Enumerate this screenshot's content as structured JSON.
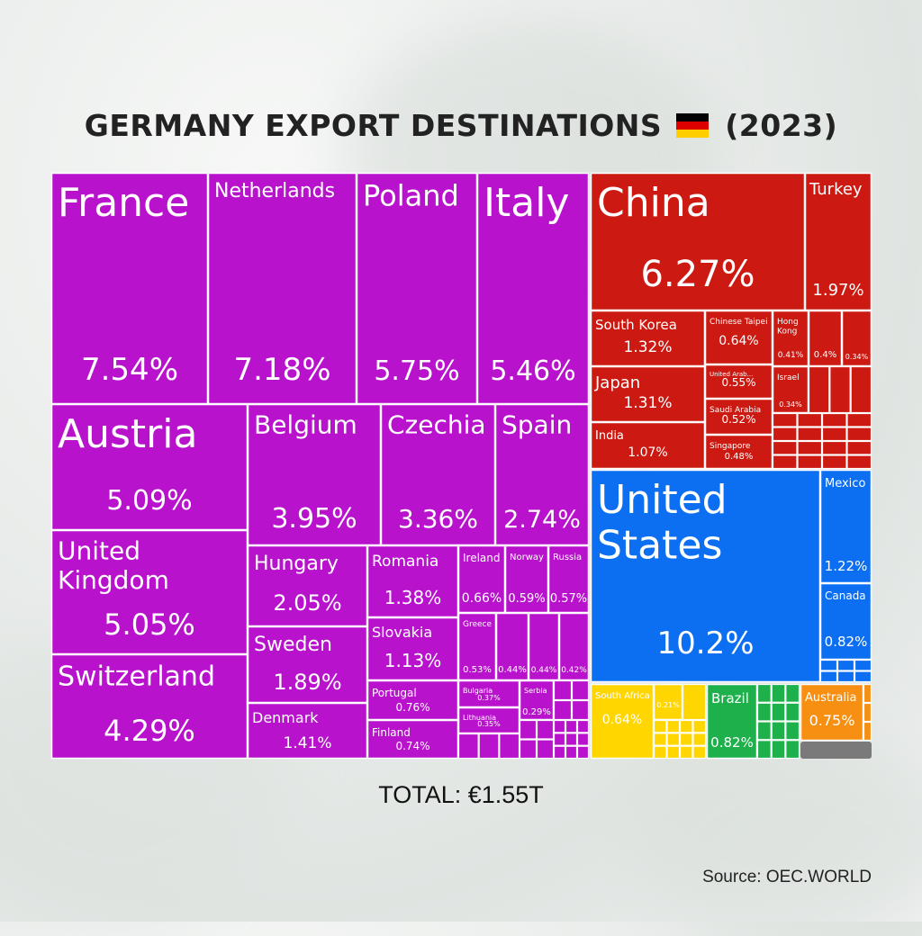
{
  "title": "GERMANY EXPORT DESTINATIONS",
  "year": "(2023)",
  "flag_colors": [
    "#000000",
    "#DD0000",
    "#FFCE00"
  ],
  "total": "TOTAL: €1.55T",
  "source": "Source: OEC.WORLD",
  "colors": {
    "Europe": "#B812CC",
    "Asia": "#CC1A12",
    "North America": "#0C6FF2",
    "Africa": "#FFD600",
    "South America": "#1DB04B",
    "Oceania": "#F68F12",
    "Other": "#7A7A7A",
    "border": "#FFFFFF"
  },
  "chart_data": {
    "type": "treemap",
    "title": "GERMANY EXPORT DESTINATIONS (2023)",
    "unit": "% of total exports",
    "total": "€1.55T",
    "items": [
      {
        "name": "France",
        "value": 7.54,
        "group": "Europe"
      },
      {
        "name": "Netherlands",
        "value": 7.18,
        "group": "Europe"
      },
      {
        "name": "Poland",
        "value": 5.75,
        "group": "Europe"
      },
      {
        "name": "Italy",
        "value": 5.46,
        "group": "Europe"
      },
      {
        "name": "Austria",
        "value": 5.09,
        "group": "Europe"
      },
      {
        "name": "United Kingdom",
        "value": 5.05,
        "group": "Europe"
      },
      {
        "name": "Switzerland",
        "value": 4.29,
        "group": "Europe"
      },
      {
        "name": "Belgium",
        "value": 3.95,
        "group": "Europe"
      },
      {
        "name": "Czechia",
        "value": 3.36,
        "group": "Europe"
      },
      {
        "name": "Spain",
        "value": 2.74,
        "group": "Europe"
      },
      {
        "name": "Hungary",
        "value": 2.05,
        "group": "Europe"
      },
      {
        "name": "Sweden",
        "value": 1.89,
        "group": "Europe"
      },
      {
        "name": "Denmark",
        "value": 1.41,
        "group": "Europe"
      },
      {
        "name": "Romania",
        "value": 1.38,
        "group": "Europe"
      },
      {
        "name": "Slovakia",
        "value": 1.13,
        "group": "Europe"
      },
      {
        "name": "Portugal",
        "value": 0.76,
        "group": "Europe"
      },
      {
        "name": "Finland",
        "value": 0.74,
        "group": "Europe"
      },
      {
        "name": "Ireland",
        "value": 0.66,
        "group": "Europe"
      },
      {
        "name": "Norway",
        "value": 0.59,
        "group": "Europe"
      },
      {
        "name": "Russia",
        "value": 0.57,
        "group": "Europe"
      },
      {
        "name": "Greece",
        "value": 0.53,
        "group": "Europe"
      },
      {
        "name": "",
        "value": 0.44,
        "group": "Europe"
      },
      {
        "name": "",
        "value": 0.44,
        "group": "Europe"
      },
      {
        "name": "",
        "value": 0.42,
        "group": "Europe"
      },
      {
        "name": "Bulgaria",
        "value": 0.37,
        "group": "Europe"
      },
      {
        "name": "Lithuania",
        "value": 0.35,
        "group": "Europe"
      },
      {
        "name": "Serbia",
        "value": 0.29,
        "group": "Europe"
      },
      {
        "name": "China",
        "value": 6.27,
        "group": "Asia"
      },
      {
        "name": "Turkey",
        "value": 1.97,
        "group": "Asia"
      },
      {
        "name": "South Korea",
        "value": 1.32,
        "group": "Asia"
      },
      {
        "name": "Japan",
        "value": 1.31,
        "group": "Asia"
      },
      {
        "name": "India",
        "value": 1.07,
        "group": "Asia"
      },
      {
        "name": "Chinese Taipei",
        "value": 0.64,
        "group": "Asia"
      },
      {
        "name": "United Arab...",
        "value": 0.55,
        "group": "Asia"
      },
      {
        "name": "Saudi Arabia",
        "value": 0.52,
        "group": "Asia"
      },
      {
        "name": "Singapore",
        "value": 0.48,
        "group": "Asia"
      },
      {
        "name": "Hong Kong",
        "value": 0.41,
        "group": "Asia"
      },
      {
        "name": "",
        "value": 0.4,
        "group": "Asia"
      },
      {
        "name": "",
        "value": 0.34,
        "group": "Asia"
      },
      {
        "name": "Israel",
        "value": 0.34,
        "group": "Asia"
      },
      {
        "name": "United States",
        "value": 10.2,
        "group": "North America"
      },
      {
        "name": "Mexico",
        "value": 1.22,
        "group": "North America"
      },
      {
        "name": "Canada",
        "value": 0.82,
        "group": "North America"
      },
      {
        "name": "South Africa",
        "value": 0.64,
        "group": "Africa"
      },
      {
        "name": "",
        "value": 0.21,
        "group": "Africa"
      },
      {
        "name": "Brazil",
        "value": 0.82,
        "group": "South America"
      },
      {
        "name": "Australia",
        "value": 0.75,
        "group": "Oceania"
      }
    ]
  }
}
